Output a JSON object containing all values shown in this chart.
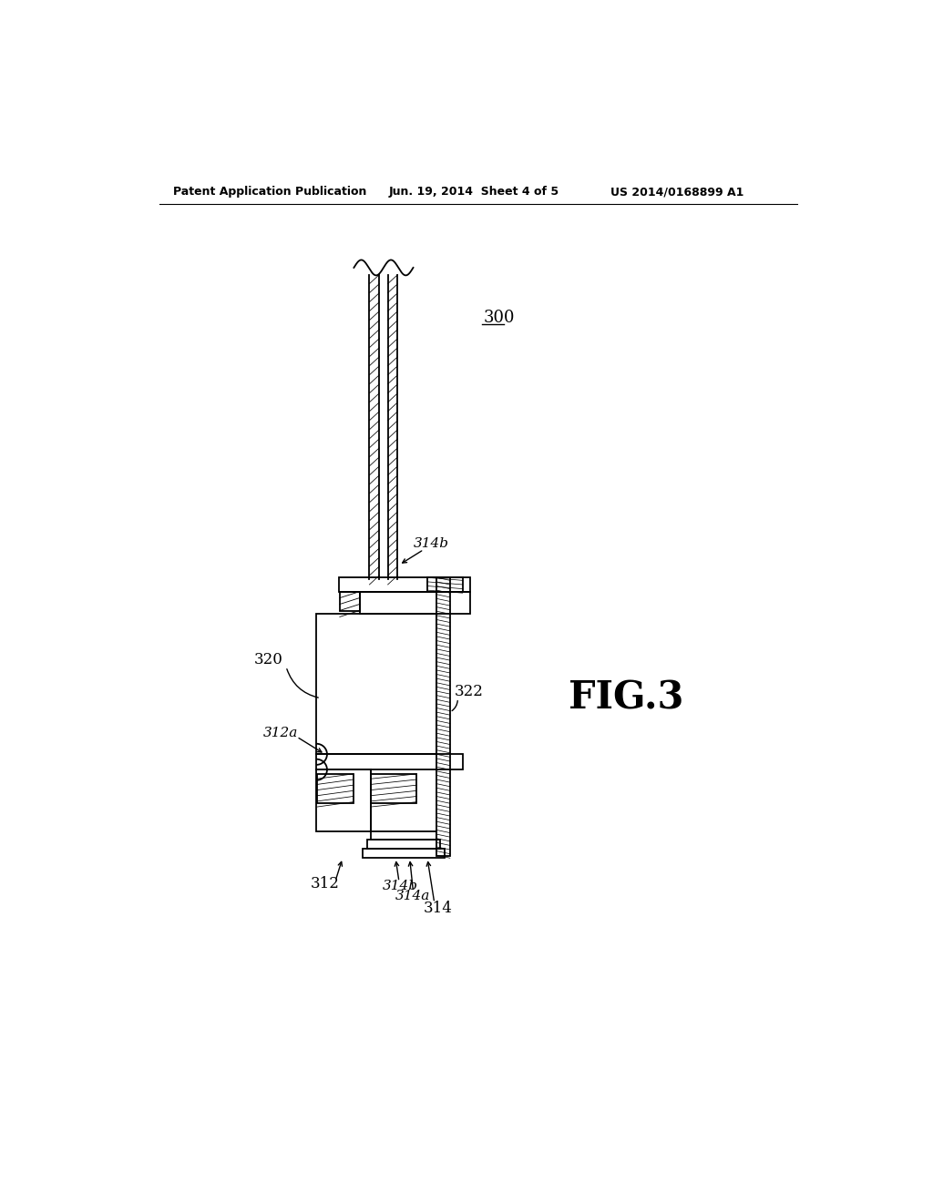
{
  "bg_color": "#ffffff",
  "header_left": "Patent Application Publication",
  "header_center": "Jun. 19, 2014  Sheet 4 of 5",
  "header_right": "US 2014/0168899 A1",
  "fig_label": "FIG.3",
  "ref_300": "300",
  "ref_320": "320",
  "ref_322": "322",
  "ref_312": "312",
  "ref_312a": "312a",
  "ref_314": "314",
  "ref_314a": "314a",
  "ref_314b_top": "314b",
  "ref_314b_bot": "314b"
}
